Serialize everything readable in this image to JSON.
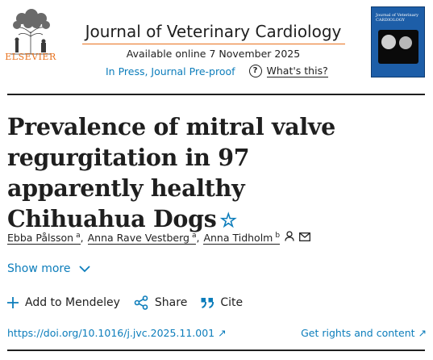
{
  "header": {
    "publisher": "ELSEVIER",
    "journal_title": "Journal of Veterinary Cardiology",
    "available_online": "Available online 7 November 2025",
    "in_press_link": "In Press, Journal Pre-proof",
    "whats_this": "What's this?",
    "cover_title": "Journal of Veterinary CARDIOLOGY"
  },
  "article": {
    "title": "Prevalence of mitral valve regurgitation in 97 apparently healthy Chihuahua Dogs",
    "star_symbol": "☆"
  },
  "authors": [
    {
      "name": "Ebba Pålsson",
      "affil": "a"
    },
    {
      "name": "Anna Rave Vestberg",
      "affil": "a"
    },
    {
      "name": "Anna Tidholm",
      "affil": "b"
    }
  ],
  "show_more": "Show more",
  "actions": {
    "mendeley": "Add to Mendeley",
    "share": "Share",
    "cite": "Cite"
  },
  "links": {
    "doi": "https://doi.org/10.1016/j.jvc.2025.11.001 ↗",
    "rights": "Get rights and content ↗"
  },
  "colors": {
    "accent_blue": "#0c7dbb",
    "elsevier_orange": "#e9711c",
    "text": "#1f1f1f"
  }
}
